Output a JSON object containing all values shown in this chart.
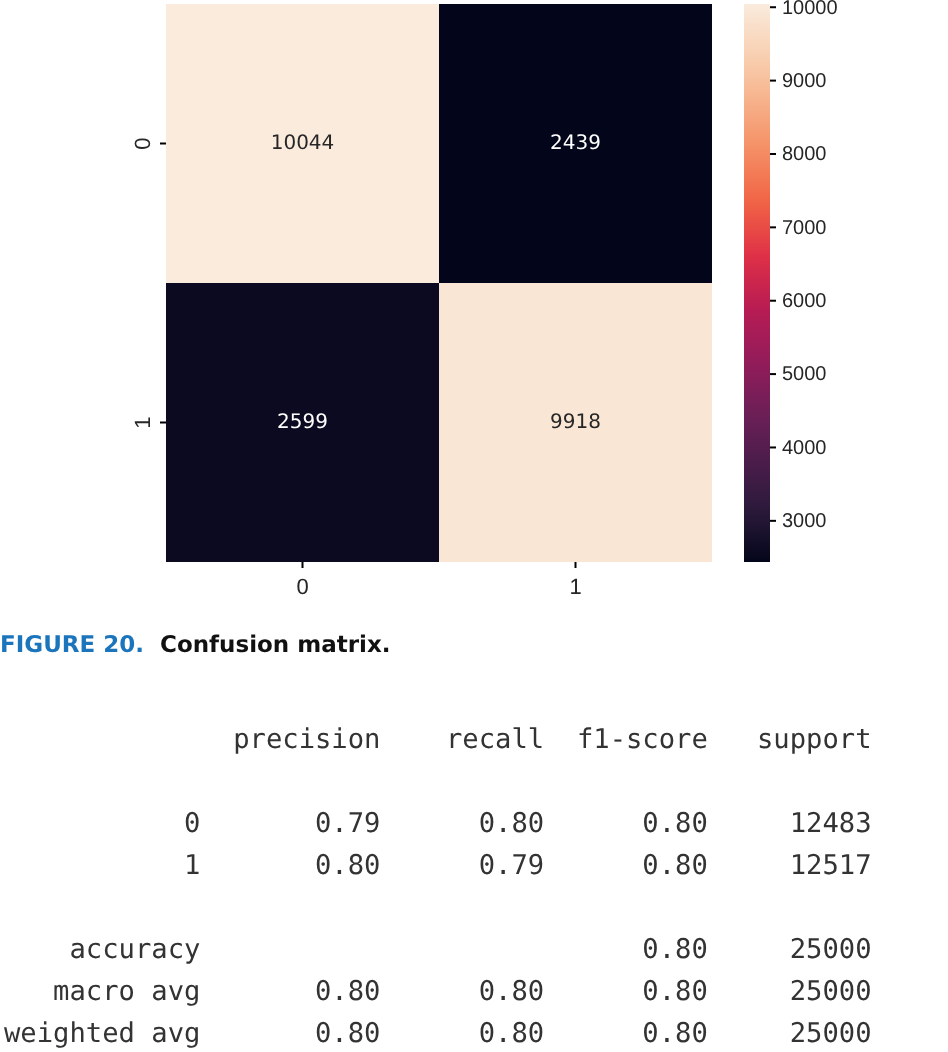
{
  "chart_data": [
    {
      "type": "heatmap",
      "categories": [
        "0",
        "1"
      ],
      "y_categories": [
        "0",
        "1"
      ],
      "cells": [
        [
          10044,
          2439
        ],
        [
          2599,
          9918
        ]
      ],
      "clim": [
        2439,
        10044
      ],
      "cticks": [
        3000,
        4000,
        5000,
        6000,
        7000,
        8000,
        9000,
        10000
      ],
      "data_labels": true,
      "annotations": [
        "FIGURE 20. Confusion matrix."
      ]
    },
    {
      "type": "other",
      "annotations": [
        "              precision    recall  f1-score   support",
        "           0       0.79      0.80      0.80     12483",
        "           1       0.80      0.79      0.80     12517",
        "    accuracy                           0.80     25000",
        "   macro avg       0.80      0.80      0.80     25000",
        "weighted avg       0.80      0.80      0.80     25000"
      ]
    }
  ]
}
